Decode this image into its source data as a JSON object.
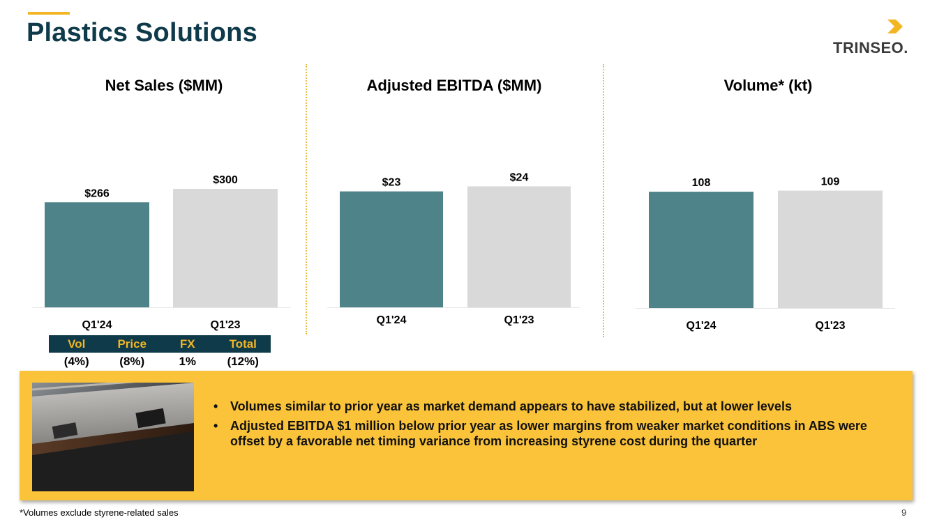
{
  "page": {
    "title": "Plastics Solutions",
    "logo_text": "TRINSEO.",
    "footnote": "*Volumes exclude styrene-related sales",
    "page_number": "9"
  },
  "colors": {
    "navy": "#0e3a4a",
    "gold": "#f2b623",
    "teal_bar": "#4e8489",
    "gray_bar": "#d9d9d9",
    "callout_bg": "#fbc33a"
  },
  "chart_data": [
    {
      "type": "bar",
      "title": "Net Sales ($MM)",
      "categories": [
        "Q1'24",
        "Q1'23"
      ],
      "values": [
        266,
        300
      ],
      "data_labels": [
        "$266",
        "$300"
      ],
      "ylim": [
        0,
        600
      ]
    },
    {
      "type": "bar",
      "title": "Adjusted EBITDA ($MM)",
      "categories": [
        "Q1'24",
        "Q1'23"
      ],
      "values": [
        23,
        24
      ],
      "data_labels": [
        "$23",
        "$24"
      ],
      "ylim": [
        0,
        47
      ]
    },
    {
      "type": "bar",
      "title": "Volume* (kt)",
      "categories": [
        "Q1'24",
        "Q1'23"
      ],
      "values": [
        108,
        109
      ],
      "data_labels": [
        "108",
        "109"
      ],
      "ylim": [
        0,
        220
      ]
    }
  ],
  "bridge": {
    "headers": [
      "Vol",
      "Price",
      "FX",
      "Total"
    ],
    "values": [
      "(4%)",
      "(8%)",
      "1%",
      "(12%)"
    ]
  },
  "callout": {
    "bullets": [
      "Volumes similar to prior year as market demand appears to have stabilized, but at lower levels",
      "Adjusted EBITDA $1 million below prior year as lower margins from weaker market conditions in ABS were offset by a favorable net timing variance from increasing styrene cost during the quarter"
    ],
    "bullet_char": "•"
  }
}
